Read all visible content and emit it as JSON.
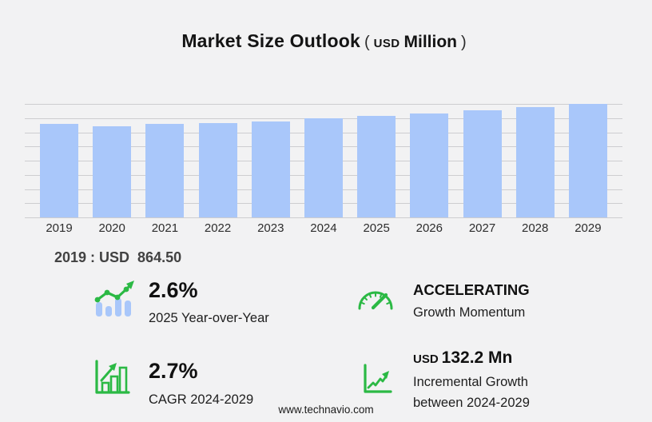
{
  "title": {
    "main": "Market Size Outlook",
    "paren_open": "(",
    "currency": "USD",
    "unit": "Million",
    "paren_close": ")"
  },
  "chart_data": {
    "type": "bar",
    "title": "Market Size Outlook (USD Million)",
    "xlabel": "",
    "ylabel": "",
    "categories": [
      "2019",
      "2020",
      "2021",
      "2022",
      "2023",
      "2024",
      "2025",
      "2026",
      "2027",
      "2028",
      "2029"
    ],
    "values": [
      864.5,
      846.0,
      862.0,
      872.4,
      887.0,
      916.1,
      939.9,
      964.8,
      991.0,
      1018.6,
      1048.2
    ],
    "ylim": [
      0,
      1050
    ],
    "gridline_count": 9,
    "grid": "horizontal",
    "legend": "none"
  },
  "annotation": {
    "base_year_value": "2019 : USD  864.50"
  },
  "stats": {
    "yoy": {
      "icon": "bar-trend-icon",
      "value": "2.6%",
      "label": "2025 Year-over-Year"
    },
    "momentum": {
      "icon": "gauge-icon",
      "value": "ACCELERATING",
      "label": "Growth Momentum"
    },
    "cagr": {
      "icon": "framed-growth-chart-icon",
      "value": "2.7%",
      "label": "CAGR 2024-2029"
    },
    "incremental": {
      "icon": "line-growth-icon",
      "value_prefix": "USD",
      "value": "132.2 Mn",
      "label_line1": "Incremental Growth",
      "label_line2": "between 2024-2029"
    }
  },
  "footer": {
    "url": "www.technavio.com"
  },
  "colors": {
    "background": "#f2f2f3",
    "bar_blue": "#a9c7fa",
    "gridline": "#cdcdd0",
    "accent_green": "#2bb944",
    "text_dark": "#161616",
    "text_gray": "#424242"
  }
}
